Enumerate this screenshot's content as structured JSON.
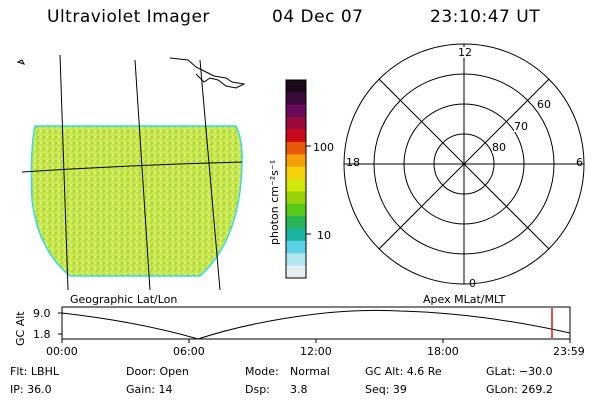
{
  "header": {
    "title": "Ultraviolet Imager",
    "date": "04 Dec 07",
    "time": "23:10:47 UT"
  },
  "colorbar": {
    "unit_label": "photon cm⁻²s⁻¹",
    "ticks": [
      "100",
      "10"
    ],
    "colors": [
      "#1a0a1a",
      "#3a0a3a",
      "#6a0a5a",
      "#9a0a3a",
      "#c80a1a",
      "#e85a0a",
      "#f5a00a",
      "#f5d20a",
      "#d2e60a",
      "#9ad20a",
      "#5ac81a",
      "#2ab45a",
      "#1ab4a0",
      "#5ad2e6",
      "#b4e6f0",
      "#e6eef2"
    ]
  },
  "left_panel": {
    "caption": "Geographic Lat/Lon",
    "fill_color": "#c8e650",
    "edge_color": "#32dce6"
  },
  "polar": {
    "caption": "Apex MLat/MLT",
    "mlt_labels": {
      "top": "12",
      "bottom": "0",
      "left": "18",
      "right": "6"
    },
    "lat_labels": [
      "60",
      "70",
      "80"
    ]
  },
  "timeline": {
    "ylabel": "GC Alt",
    "y_ticks": [
      "9.0",
      "1.8"
    ],
    "x_ticks": [
      "00:00",
      "06:00",
      "12:00",
      "18:00",
      "23:59"
    ],
    "marker_color": "#e01010"
  },
  "status": {
    "flt": "Flt: LBHL",
    "ip": "IP: 36.0",
    "door": "Door: Open",
    "gain": "Gain: 14",
    "mode_label": "Mode:",
    "mode_value": "Normal",
    "dsp_label": "Dsp:",
    "dsp_value": "3.8",
    "gc_alt": "GC Alt: 4.6 Re",
    "seq": "Seq: 39",
    "glat": "GLat: −30.0",
    "glon": "GLon: 269.2"
  }
}
